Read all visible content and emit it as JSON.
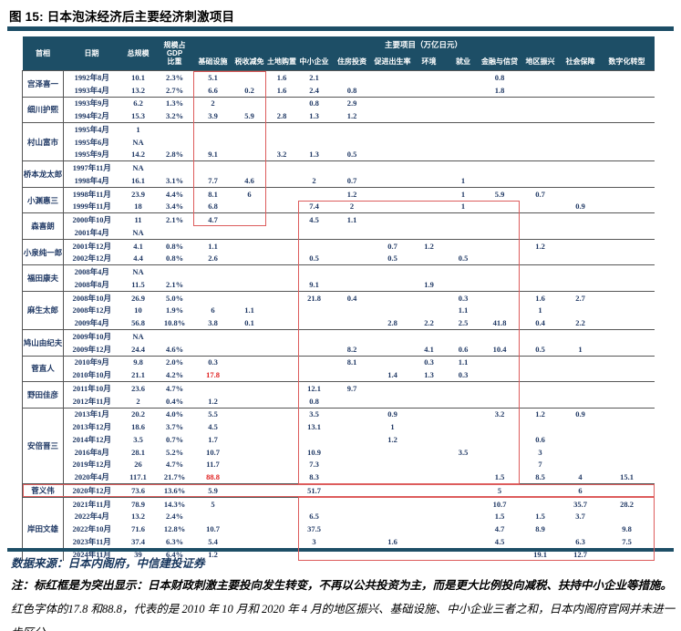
{
  "title": "图 15: 日本泡沫经济后主要经济刺激项目",
  "colors": {
    "header_bg": "#1d4e66",
    "accent_rule": "#1d4e66",
    "highlight_box_red": "#dd5c5c",
    "red_text": "#e02020"
  },
  "table": {
    "columns": {
      "pm": "首相",
      "date": "日期",
      "total": "总规模",
      "gdp_line1": "规模占GDP",
      "gdp_line2": "比重",
      "group_header": "主要项目（万亿日元）",
      "items": [
        "基础设施",
        "税收减免",
        "土地购置",
        "中小企业",
        "住房投资",
        "促进出生率",
        "环境",
        "就业",
        "金融与信贷",
        "地区振兴",
        "社会保障",
        "数字化转型"
      ]
    },
    "groups": [
      {
        "pm": "宫泽喜一",
        "rows": [
          {
            "date": "1992年8月",
            "total": "10.1",
            "gdp": "2.3%",
            "values": [
              "5.1",
              "",
              "1.6",
              "2.1",
              "",
              "",
              "",
              "",
              "0.8",
              "",
              "",
              ""
            ]
          },
          {
            "date": "1993年4月",
            "total": "13.2",
            "gdp": "2.7%",
            "values": [
              "6.6",
              "0.2",
              "1.6",
              "2.4",
              "0.8",
              "",
              "",
              "",
              "1.8",
              "",
              "",
              ""
            ]
          }
        ]
      },
      {
        "pm": "细川护熙",
        "rows": [
          {
            "date": "1993年9月",
            "total": "6.2",
            "gdp": "1.3%",
            "values": [
              "2",
              "",
              "",
              "0.8",
              "2.9",
              "",
              "",
              "",
              "",
              "",
              "",
              ""
            ]
          },
          {
            "date": "1994年2月",
            "total": "15.3",
            "gdp": "3.2%",
            "values": [
              "3.9",
              "5.9",
              "2.8",
              "1.3",
              "1.2",
              "",
              "",
              "",
              "",
              "",
              "",
              ""
            ]
          }
        ]
      },
      {
        "pm": "村山富市",
        "rows": [
          {
            "date": "1995年4月",
            "total": "1",
            "gdp": "",
            "values": [
              "",
              "",
              "",
              "",
              "",
              "",
              "",
              "",
              "",
              "",
              "",
              ""
            ]
          },
          {
            "date": "1995年6月",
            "total": "NA",
            "gdp": "",
            "values": [
              "",
              "",
              "",
              "",
              "",
              "",
              "",
              "",
              "",
              "",
              "",
              ""
            ]
          },
          {
            "date": "1995年9月",
            "total": "14.2",
            "gdp": "2.8%",
            "values": [
              "9.1",
              "",
              "3.2",
              "1.3",
              "0.5",
              "",
              "",
              "",
              "",
              "",
              "",
              ""
            ]
          }
        ]
      },
      {
        "pm": "桥本龙太郎",
        "rows": [
          {
            "date": "1997年11月",
            "total": "NA",
            "gdp": "",
            "values": [
              "",
              "",
              "",
              "",
              "",
              "",
              "",
              "",
              "",
              "",
              "",
              ""
            ]
          },
          {
            "date": "1998年4月",
            "total": "16.1",
            "gdp": "3.1%",
            "values": [
              "7.7",
              "4.6",
              "",
              "2",
              "0.7",
              "",
              "",
              "1",
              "",
              "",
              "",
              ""
            ]
          }
        ]
      },
      {
        "pm": "小渊惠三",
        "rows": [
          {
            "date": "1998年11月",
            "total": "23.9",
            "gdp": "4.4%",
            "values": [
              "8.1",
              "6",
              "",
              "",
              "1.2",
              "",
              "",
              "1",
              "5.9",
              "0.7",
              "",
              ""
            ]
          },
          {
            "date": "1999年11月",
            "total": "18",
            "gdp": "3.4%",
            "values": [
              "6.8",
              "",
              "",
              "7.4",
              "2",
              "",
              "",
              "1",
              "",
              "",
              "0.9",
              ""
            ]
          }
        ]
      },
      {
        "pm": "森喜朗",
        "rows": [
          {
            "date": "2000年10月",
            "total": "11",
            "gdp": "2.1%",
            "values": [
              "4.7",
              "",
              "",
              "4.5",
              "1.1",
              "",
              "",
              "",
              "",
              "",
              "",
              ""
            ]
          },
          {
            "date": "2001年4月",
            "total": "NA",
            "gdp": "",
            "values": [
              "",
              "",
              "",
              "",
              "",
              "",
              "",
              "",
              "",
              "",
              "",
              ""
            ]
          }
        ]
      },
      {
        "pm": "小泉纯一郎",
        "rows": [
          {
            "date": "2001年12月",
            "total": "4.1",
            "gdp": "0.8%",
            "values": [
              "1.1",
              "",
              "",
              "",
              "",
              "0.7",
              "1.2",
              "",
              "",
              "1.2",
              "",
              ""
            ]
          },
          {
            "date": "2002年12月",
            "total": "4.4",
            "gdp": "0.8%",
            "values": [
              "2.6",
              "",
              "",
              "0.5",
              "",
              "0.5",
              "",
              "0.5",
              "",
              "",
              "",
              ""
            ]
          }
        ]
      },
      {
        "pm": "福田康夫",
        "rows": [
          {
            "date": "2008年4月",
            "total": "NA",
            "gdp": "",
            "values": [
              "",
              "",
              "",
              "",
              "",
              "",
              "",
              "",
              "",
              "",
              "",
              ""
            ]
          },
          {
            "date": "2008年8月",
            "total": "11.5",
            "gdp": "2.1%",
            "values": [
              "",
              "",
              "",
              "9.1",
              "",
              "",
              "1.9",
              "",
              "",
              "",
              "",
              ""
            ]
          }
        ]
      },
      {
        "pm": "麻生太郎",
        "rows": [
          {
            "date": "2008年10月",
            "total": "26.9",
            "gdp": "5.0%",
            "values": [
              "",
              "",
              "",
              "21.8",
              "0.4",
              "",
              "",
              "0.3",
              "",
              "1.6",
              "2.7",
              ""
            ]
          },
          {
            "date": "2008年12月",
            "total": "10",
            "gdp": "1.9%",
            "values": [
              "6",
              "1.1",
              "",
              "",
              "",
              "",
              "",
              "1.1",
              "",
              "1",
              "",
              ""
            ]
          },
          {
            "date": "2009年4月",
            "total": "56.8",
            "gdp": "10.8%",
            "values": [
              "3.8",
              "0.1",
              "",
              "",
              "",
              "2.8",
              "2.2",
              "2.5",
              "41.8",
              "0.4",
              "2.2",
              ""
            ]
          }
        ]
      },
      {
        "pm": "鸠山由纪夫",
        "rows": [
          {
            "date": "2009年10月",
            "total": "NA",
            "gdp": "",
            "values": [
              "",
              "",
              "",
              "",
              "",
              "",
              "",
              "",
              "",
              "",
              "",
              ""
            ]
          },
          {
            "date": "2009年12月",
            "total": "24.4",
            "gdp": "4.6%",
            "values": [
              "",
              "",
              "",
              "",
              "8.2",
              "",
              "4.1",
              "0.6",
              "10.4",
              "0.5",
              "1",
              ""
            ]
          }
        ]
      },
      {
        "pm": "菅直人",
        "rows": [
          {
            "date": "2010年9月",
            "total": "9.8",
            "gdp": "2.0%",
            "values": [
              "0.3",
              "",
              "",
              "",
              "8.1",
              "",
              "0.3",
              "1.1",
              "",
              "",
              "",
              ""
            ]
          },
          {
            "date": "2010年10月",
            "total": "21.1",
            "gdp": "4.2%",
            "values": [
              "17.8",
              "",
              "",
              "",
              "",
              "1.4",
              "1.3",
              "0.3",
              "",
              "",
              "",
              ""
            ]
          }
        ]
      },
      {
        "pm": "野田佳彦",
        "rows": [
          {
            "date": "2011年10月",
            "total": "23.6",
            "gdp": "4.7%",
            "values": [
              "",
              "",
              "",
              "12.1",
              "9.7",
              "",
              "",
              "",
              "",
              "",
              "",
              ""
            ]
          },
          {
            "date": "2012年11月",
            "total": "2",
            "gdp": "0.4%",
            "values": [
              "1.2",
              "",
              "",
              "0.8",
              "",
              "",
              "",
              "",
              "",
              "",
              "",
              ""
            ]
          }
        ]
      },
      {
        "pm": "安倍晋三",
        "rows": [
          {
            "date": "2013年1月",
            "total": "20.2",
            "gdp": "4.0%",
            "values": [
              "5.5",
              "",
              "",
              "3.5",
              "",
              "0.9",
              "",
              "",
              "3.2",
              "1.2",
              "0.9",
              ""
            ]
          },
          {
            "date": "2013年12月",
            "total": "18.6",
            "gdp": "3.7%",
            "values": [
              "4.5",
              "",
              "",
              "13.1",
              "",
              "1",
              "",
              "",
              "",
              "",
              "",
              ""
            ]
          },
          {
            "date": "2014年12月",
            "total": "3.5",
            "gdp": "0.7%",
            "values": [
              "1.7",
              "",
              "",
              "",
              "",
              "1.2",
              "",
              "",
              "",
              "0.6",
              "",
              ""
            ]
          },
          {
            "date": "2016年8月",
            "total": "28.1",
            "gdp": "5.2%",
            "values": [
              "10.7",
              "",
              "",
              "10.9",
              "",
              "",
              "",
              "3.5",
              "",
              "3",
              "",
              ""
            ]
          },
          {
            "date": "2019年12月",
            "total": "26",
            "gdp": "4.7%",
            "values": [
              "11.7",
              "",
              "",
              "7.3",
              "",
              "",
              "",
              "",
              "",
              "7",
              "",
              ""
            ]
          },
          {
            "date": "2020年4月",
            "total": "117.1",
            "gdp": "21.7%",
            "values": [
              "88.8",
              "",
              "",
              "8.3",
              "",
              "",
              "",
              "",
              "1.5",
              "8.5",
              "4",
              "15.1"
            ]
          }
        ]
      },
      {
        "pm": "菅义伟",
        "rows": [
          {
            "date": "2020年12月",
            "total": "73.6",
            "gdp": "13.6%",
            "values": [
              "5.9",
              "",
              "",
              "51.7",
              "",
              "",
              "",
              "",
              "5",
              "",
              "6",
              ""
            ]
          }
        ]
      },
      {
        "pm": "岸田文雄",
        "rows": [
          {
            "date": "2021年11月",
            "total": "78.9",
            "gdp": "14.3%",
            "values": [
              "5",
              "",
              "",
              "",
              "",
              "",
              "",
              "",
              "10.7",
              "",
              "35.7",
              "28.2"
            ]
          },
          {
            "date": "2022年4月",
            "total": "13.2",
            "gdp": "2.4%",
            "values": [
              "",
              "",
              "",
              "6.5",
              "",
              "",
              "",
              "",
              "1.5",
              "1.5",
              "3.7",
              ""
            ]
          },
          {
            "date": "2022年10月",
            "total": "71.6",
            "gdp": "12.8%",
            "values": [
              "10.7",
              "",
              "",
              "37.5",
              "",
              "",
              "",
              "",
              "4.7",
              "8.9",
              "",
              "9.8"
            ]
          },
          {
            "date": "2023年11月",
            "total": "37.4",
            "gdp": "6.3%",
            "values": [
              "5.4",
              "",
              "",
              "3",
              "",
              "1.6",
              "",
              "",
              "4.5",
              "",
              "6.3",
              "7.5"
            ]
          },
          {
            "date": "2024年11月",
            "total": "39",
            "gdp": "6.4%",
            "values": [
              "1.2",
              "",
              "",
              "",
              "",
              "",
              "",
              "",
              "",
              "19.1",
              "12.7",
              ""
            ]
          }
        ]
      }
    ],
    "red_cells": [
      {
        "date": "2010年10月",
        "item": "基础设施",
        "value": "17.8"
      },
      {
        "date": "2020年4月",
        "item": "基础设施",
        "value": "88.8"
      }
    ],
    "highlight_boxes": [
      {
        "name": "infra-tax-era-box",
        "from_date": "1992年8月",
        "to_date": "2000年10月",
        "from_item": "基础设施",
        "to_item": "税收减免",
        "full_row": false
      },
      {
        "name": "sme-finance-era-box",
        "from_date": "1999年11月",
        "to_date": "2020年4月",
        "from_item": "中小企业",
        "to_item": "金融与信贷",
        "full_row": false
      },
      {
        "name": "suga-row-box",
        "from_date": "2020年12月",
        "to_date": "2020年12月",
        "from_item": "",
        "to_item": "",
        "full_row": true
      },
      {
        "name": "kishida-era-box",
        "from_date": "2021年11月",
        "to_date": "2024年11月",
        "from_item": "中小企业",
        "to_item": "数字化转型",
        "full_row": false
      }
    ]
  },
  "footer": {
    "source": "数据来源：日本内阁府，中信建投证券",
    "note1": "注：标红框是为突出显示：日本财政刺激主要投向发生转变，不再以公共投资为主，而是更大比例投向减税、扶持中小企业等措施。",
    "note2": "红色字体的17.8 和88.8，代表的是 2010 年 10 月和 2020 年 4 月的地区振兴、基础设施、中小企业三者之和，日本内阁府官网并未进一步区分。"
  }
}
